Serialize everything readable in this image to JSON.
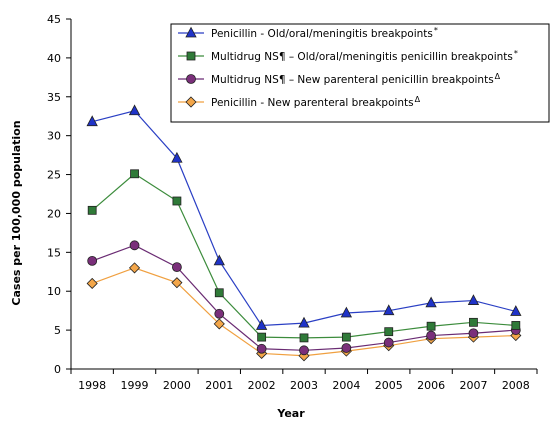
{
  "chart_data": {
    "type": "line",
    "title": "",
    "xlabel": "Year",
    "ylabel": "Cases per 100,000 population",
    "x": [
      1998,
      1999,
      2000,
      2001,
      2002,
      2003,
      2004,
      2005,
      2006,
      2007,
      2008
    ],
    "ylim": [
      0,
      45
    ],
    "yticks": [
      0,
      5,
      10,
      15,
      20,
      25,
      30,
      35,
      40,
      45
    ],
    "grid": false,
    "legend_position": "top-right",
    "series": [
      {
        "name": "Penicillin - Old/oral/meningitis breakpoints",
        "sup": "*",
        "marker": "triangle",
        "color": "#2a3fc4",
        "fill": "#1f33c8",
        "values": [
          31.8,
          33.2,
          27.1,
          13.9,
          5.6,
          5.9,
          7.2,
          7.5,
          8.5,
          8.8,
          7.4
        ]
      },
      {
        "name": "Multidrug NS¶ – Old/oral/meningitis penicillin breakpoints",
        "sup": "*",
        "marker": "square",
        "color": "#3c8c3c",
        "fill": "#2f7a38",
        "values": [
          20.4,
          25.1,
          21.6,
          9.8,
          4.1,
          4.0,
          4.1,
          4.8,
          5.5,
          6.0,
          5.6
        ]
      },
      {
        "name": "Multidrug NS¶ – New parenteral penicillin breakpoints",
        "sup": "Δ",
        "marker": "circle",
        "color": "#6a2b73",
        "fill": "#7a2f7a",
        "values": [
          13.9,
          15.9,
          13.1,
          7.1,
          2.6,
          2.4,
          2.7,
          3.4,
          4.3,
          4.6,
          5.0
        ]
      },
      {
        "name": "Penicillin - New parenteral breakpoints",
        "sup": "Δ",
        "marker": "diamond",
        "color": "#f0a040",
        "fill": "#f3a649",
        "values": [
          11.0,
          13.0,
          11.1,
          5.8,
          2.0,
          1.7,
          2.3,
          3.0,
          3.9,
          4.1,
          4.3
        ]
      }
    ]
  }
}
